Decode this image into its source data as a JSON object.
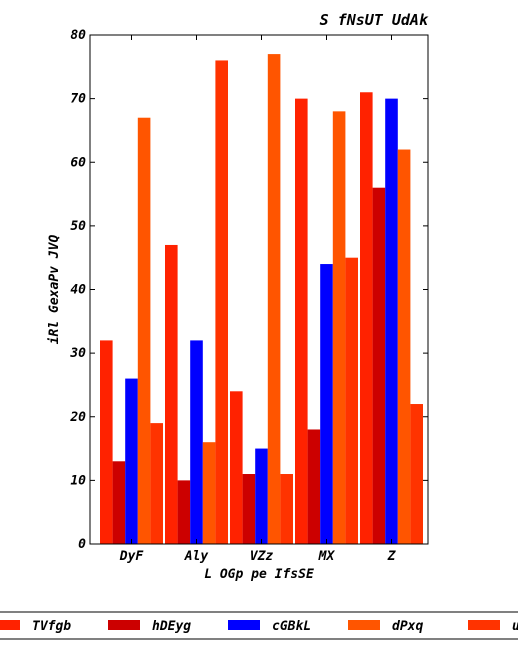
{
  "chart_data": {
    "type": "bar",
    "title": "S fNsUT UdAk",
    "xlabel": "L OGp pe IfsSE",
    "ylabel": "iRl GexaPv JVQ",
    "categories": [
      "DyF",
      "Aly",
      "VZz",
      "MX",
      "Z"
    ],
    "ylim": [
      0,
      80
    ],
    "yticks": [
      0,
      10,
      20,
      30,
      40,
      50,
      60,
      70,
      80
    ],
    "grid": false,
    "legend_position": "bottom",
    "series": [
      {
        "name": "TVfgb",
        "color": "#ff2200",
        "values": [
          32,
          47,
          24,
          70,
          71
        ]
      },
      {
        "name": "hDEyg",
        "color": "#cc0000",
        "values": [
          13,
          10,
          11,
          18,
          56
        ]
      },
      {
        "name": "cGBkL",
        "color": "#0000ff",
        "values": [
          26,
          32,
          15,
          44,
          70
        ]
      },
      {
        "name": "dPxq",
        "color": "#ff5500",
        "values": [
          67,
          16,
          77,
          68,
          62
        ]
      },
      {
        "name": "uKtRe",
        "color": "#ff3300",
        "values": [
          19,
          76,
          11,
          45,
          22
        ]
      }
    ]
  }
}
